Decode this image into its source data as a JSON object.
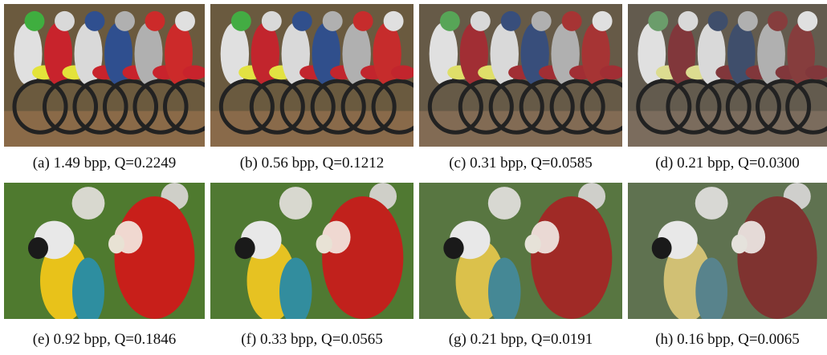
{
  "figure": {
    "panels": [
      {
        "caption": "(a) 1.49 bpp, Q=0.2249"
      },
      {
        "caption": "(b) 0.56 bpp, Q=0.1212"
      },
      {
        "caption": "(c) 0.31 bpp, Q=0.0585"
      },
      {
        "caption": "(d) 0.21 bpp, Q=0.0300"
      },
      {
        "caption": "(e) 0.92 bpp, Q=0.1846"
      },
      {
        "caption": "(f) 0.33 bpp, Q=0.0565"
      },
      {
        "caption": "(g) 0.21 bpp, Q=0.0191"
      },
      {
        "caption": "(h) 0.16 bpp, Q=0.0065"
      }
    ]
  }
}
